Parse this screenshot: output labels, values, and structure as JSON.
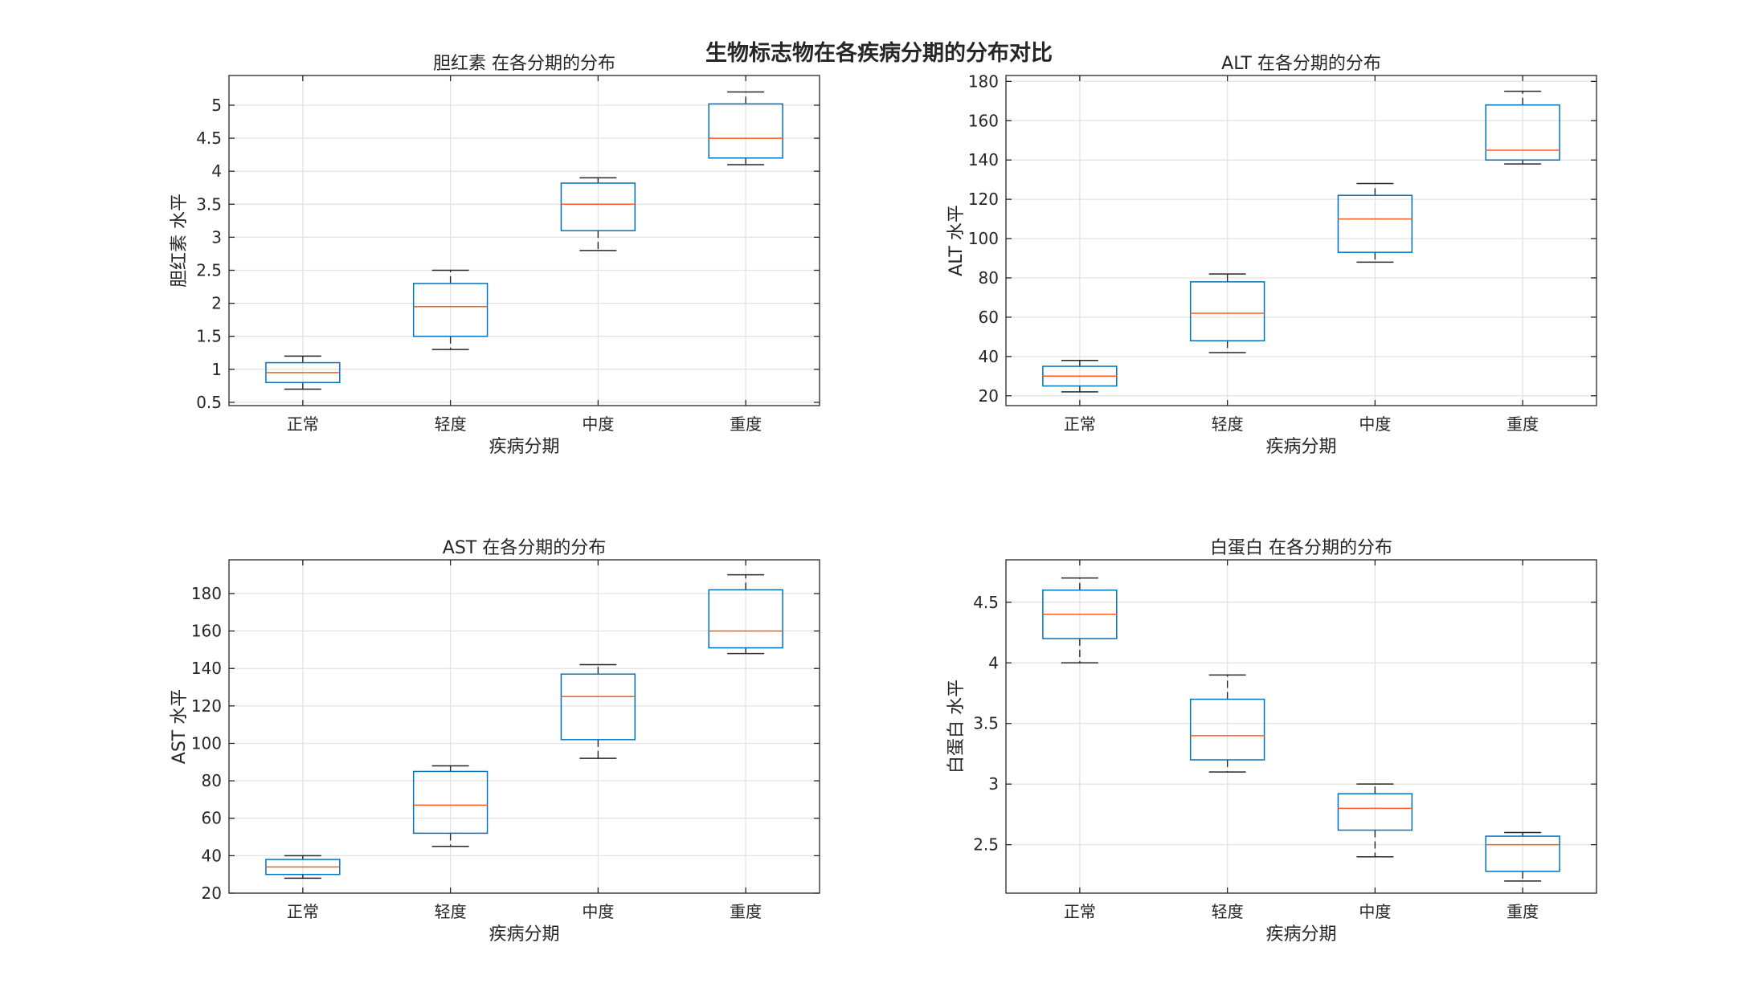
{
  "figure": {
    "suptitle": "生物标志物在各疾病分期的分布对比"
  },
  "colors": {
    "box": "#0072bd",
    "median": "#ff5b1f",
    "whisker": "#262626",
    "grid": "#e3e3e3"
  },
  "chart_data": [
    {
      "type": "box",
      "title": "胆红素 在各分期的分布",
      "xlabel": "疾病分期",
      "ylabel": "胆红素 水平",
      "categories": [
        "正常",
        "轻度",
        "中度",
        "重度"
      ],
      "ylim": [
        0.45,
        5.45
      ],
      "yticks": [
        0.5,
        1,
        1.5,
        2,
        2.5,
        3,
        3.5,
        4,
        4.5,
        5
      ],
      "grid": true,
      "boxes": [
        {
          "min": 0.7,
          "q1": 0.8,
          "median": 0.95,
          "q3": 1.1,
          "max": 1.2
        },
        {
          "min": 1.3,
          "q1": 1.5,
          "median": 1.95,
          "q3": 2.3,
          "max": 2.5
        },
        {
          "min": 2.8,
          "q1": 3.1,
          "median": 3.5,
          "q3": 3.82,
          "max": 3.9
        },
        {
          "min": 4.1,
          "q1": 4.2,
          "median": 4.5,
          "q3": 5.02,
          "max": 5.2
        }
      ]
    },
    {
      "type": "box",
      "title": "ALT 在各分期的分布",
      "xlabel": "疾病分期",
      "ylabel": "ALT 水平",
      "categories": [
        "正常",
        "轻度",
        "中度",
        "重度"
      ],
      "ylim": [
        15,
        183
      ],
      "yticks": [
        20,
        40,
        60,
        80,
        100,
        120,
        140,
        160,
        180
      ],
      "grid": true,
      "boxes": [
        {
          "min": 22,
          "q1": 25,
          "median": 30,
          "q3": 35,
          "max": 38
        },
        {
          "min": 42,
          "q1": 48,
          "median": 62,
          "q3": 78,
          "max": 82
        },
        {
          "min": 88,
          "q1": 93,
          "median": 110,
          "q3": 122,
          "max": 128
        },
        {
          "min": 138,
          "q1": 140,
          "median": 145,
          "q3": 168,
          "max": 175
        }
      ]
    },
    {
      "type": "box",
      "title": "AST 在各分期的分布",
      "xlabel": "疾病分期",
      "ylabel": "AST 水平",
      "categories": [
        "正常",
        "轻度",
        "中度",
        "重度"
      ],
      "ylim": [
        20,
        198
      ],
      "yticks": [
        20,
        40,
        60,
        80,
        100,
        120,
        140,
        160,
        180
      ],
      "grid": true,
      "boxes": [
        {
          "min": 28,
          "q1": 30,
          "median": 34,
          "q3": 38,
          "max": 40
        },
        {
          "min": 45,
          "q1": 52,
          "median": 67,
          "q3": 85,
          "max": 88
        },
        {
          "min": 92,
          "q1": 102,
          "median": 125,
          "q3": 137,
          "max": 142
        },
        {
          "min": 148,
          "q1": 151,
          "median": 160,
          "q3": 182,
          "max": 190
        }
      ]
    },
    {
      "type": "box",
      "title": "白蛋白 在各分期的分布",
      "xlabel": "疾病分期",
      "ylabel": "白蛋白 水平",
      "categories": [
        "正常",
        "轻度",
        "中度",
        "重度"
      ],
      "ylim": [
        2.1,
        4.85
      ],
      "yticks": [
        2.5,
        3,
        3.5,
        4,
        4.5
      ],
      "grid": true,
      "boxes": [
        {
          "min": 4.0,
          "q1": 4.2,
          "median": 4.4,
          "q3": 4.6,
          "max": 4.7
        },
        {
          "min": 3.1,
          "q1": 3.2,
          "median": 3.4,
          "q3": 3.7,
          "max": 3.9
        },
        {
          "min": 2.4,
          "q1": 2.62,
          "median": 2.8,
          "q3": 2.92,
          "max": 3.0
        },
        {
          "min": 2.2,
          "q1": 2.28,
          "median": 2.5,
          "q3": 2.57,
          "max": 2.6
        }
      ]
    }
  ]
}
